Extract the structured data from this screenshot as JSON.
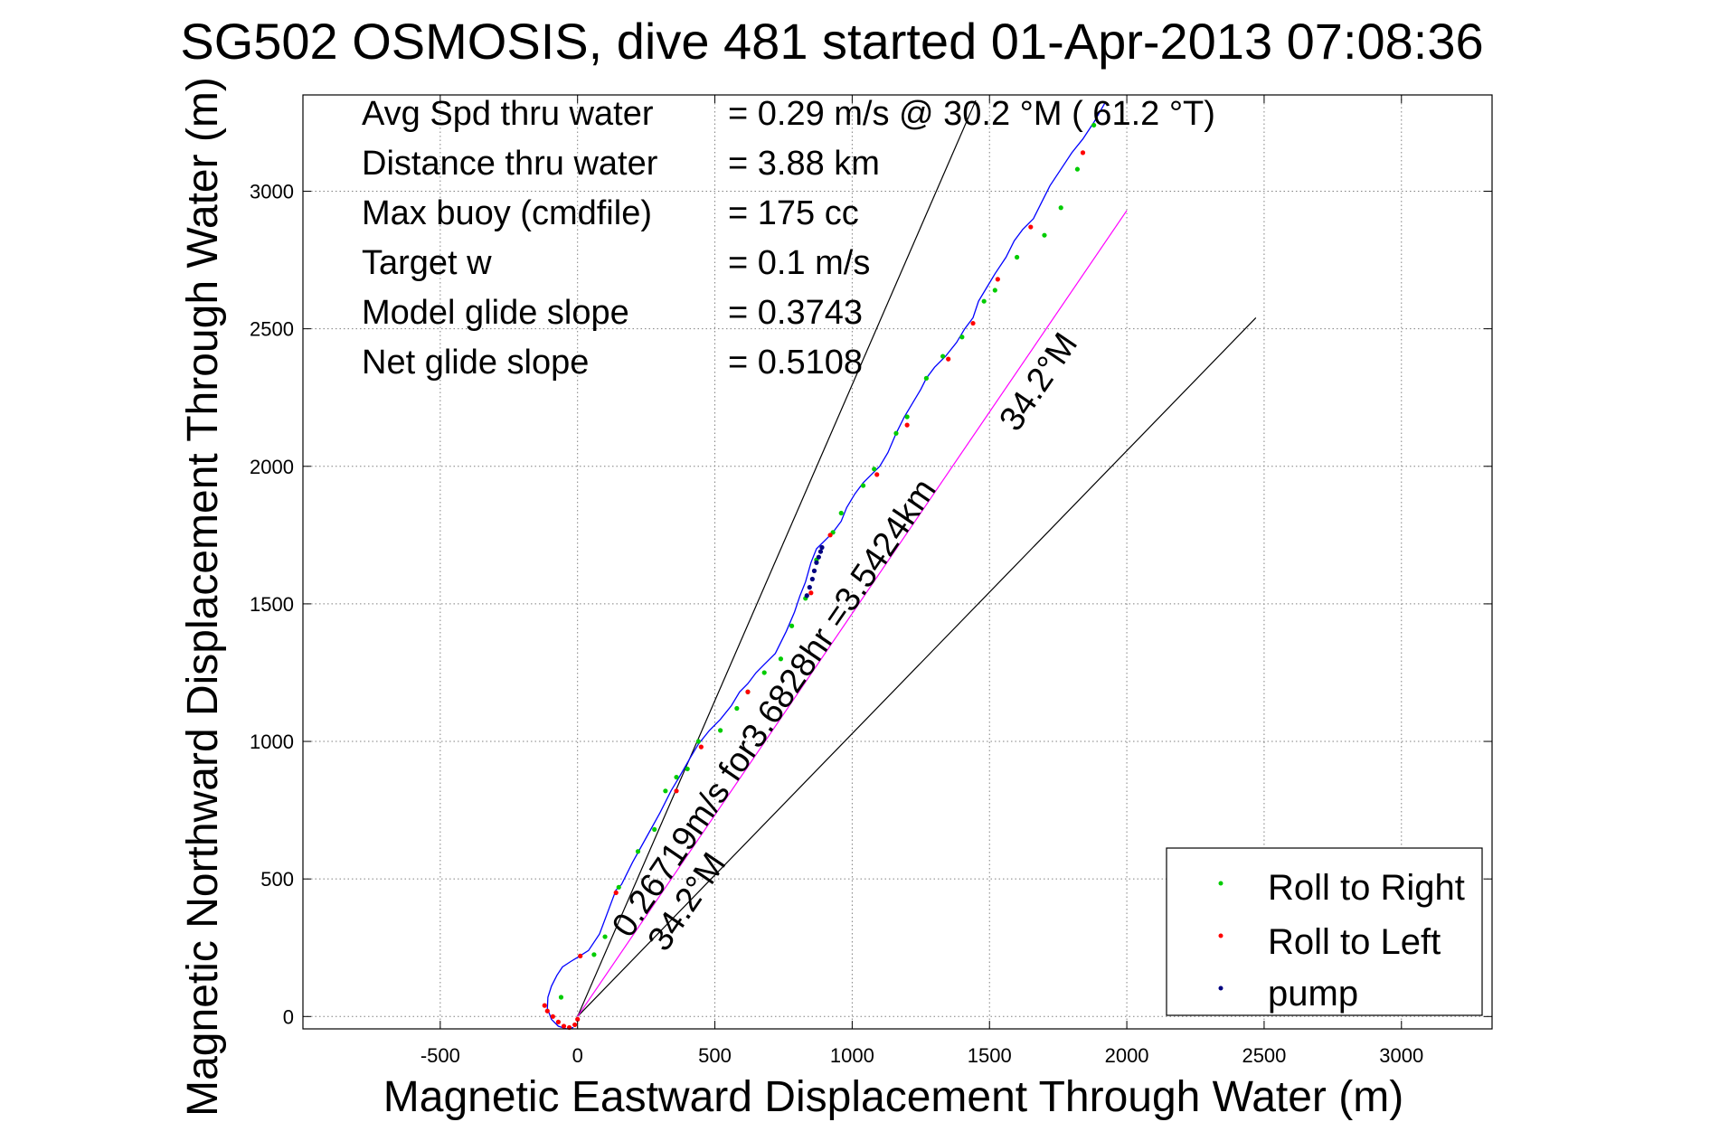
{
  "chart_data": {
    "type": "line",
    "title": "SG502 OSMOSIS, dive 481 started 01-Apr-2013 07:08:36",
    "xlabel": "Magnetic Eastward Displacement Through Water (m)",
    "ylabel": "Magnetic Northward Displacement Through Water (m)",
    "xlim": [
      -1000,
      3330
    ],
    "ylim": [
      -45,
      3350
    ],
    "xticks": [
      -500,
      0,
      500,
      1000,
      1500,
      2000,
      2500,
      3000
    ],
    "yticks": [
      0,
      500,
      1000,
      1500,
      2000,
      2500,
      3000
    ],
    "xtick_labels": [
      "-500",
      "0",
      "500",
      "1000",
      "1500",
      "2000",
      "2500",
      "3000"
    ],
    "ytick_labels": [
      "0",
      "500",
      "1000",
      "1500",
      "2000",
      "2500",
      "3000"
    ],
    "grid": true,
    "legend_position": "bottom-right",
    "stats": [
      {
        "label": "Avg Spd thru water",
        "value": "=  0.29 m/s @  30.2 °M ( 61.2 °T)"
      },
      {
        "label": "Distance thru water",
        "value": "=  3.88 km"
      },
      {
        "label": "Max buoy (cmdfile)",
        "value": "= 175 cc"
      },
      {
        "label": "Target w",
        "value": "= 0.1 m/s"
      },
      {
        "label": "Model glide slope",
        "value": "= 0.3743"
      },
      {
        "label": "Net glide slope",
        "value": "= 0.5108"
      }
    ],
    "track": {
      "color": "#0000ff",
      "x": [
        -15,
        -40,
        -70,
        -95,
        -110,
        -108,
        -95,
        -75,
        -55,
        -25,
        0,
        40,
        80,
        110,
        140,
        160,
        200,
        250,
        300,
        340,
        370,
        410,
        440,
        480,
        520,
        560,
        590,
        620,
        650,
        680,
        720,
        760,
        790,
        810,
        830,
        850,
        870,
        890,
        910,
        930,
        960,
        980,
        1010,
        1040,
        1070,
        1100,
        1130,
        1160,
        1190,
        1220,
        1250,
        1270,
        1300,
        1340,
        1380,
        1410,
        1440,
        1460,
        1490,
        1520,
        1560,
        1590,
        1620,
        1660,
        1690,
        1720,
        1760,
        1800,
        1840,
        1880,
        1920
      ],
      "y": [
        -40,
        -45,
        -35,
        -10,
        30,
        70,
        110,
        150,
        180,
        200,
        215,
        240,
        300,
        380,
        460,
        480,
        560,
        650,
        740,
        820,
        870,
        940,
        990,
        1040,
        1080,
        1130,
        1180,
        1210,
        1250,
        1280,
        1320,
        1400,
        1470,
        1530,
        1580,
        1650,
        1700,
        1720,
        1740,
        1760,
        1800,
        1850,
        1900,
        1940,
        1970,
        2000,
        2050,
        2120,
        2180,
        2230,
        2280,
        2320,
        2360,
        2400,
        2450,
        2500,
        2540,
        2600,
        2650,
        2700,
        2760,
        2820,
        2860,
        2900,
        2960,
        3020,
        3080,
        3140,
        3190,
        3250,
        3320
      ]
    },
    "slant_lines": [
      {
        "from": [
          0,
          0
        ],
        "to": [
          1450,
          3330
        ],
        "color": "#000000"
      },
      {
        "from": [
          0,
          0
        ],
        "to": [
          2470,
          2540
        ],
        "color": "#000000"
      },
      {
        "from": [
          0,
          0
        ],
        "to": [
          2000,
          2930
        ],
        "color": "#ff00ff"
      }
    ],
    "series": [
      {
        "name": "Roll to Right",
        "color": "#00cc00",
        "x": [
          -60,
          60,
          100,
          150,
          220,
          280,
          320,
          360,
          400,
          440,
          520,
          580,
          620,
          680,
          740,
          780,
          830,
          870,
          930,
          960,
          1040,
          1080,
          1160,
          1200,
          1270,
          1330,
          1400,
          1480,
          1520,
          1600,
          1700,
          1760,
          1820,
          1880
        ],
        "y": [
          70,
          225,
          290,
          470,
          600,
          680,
          820,
          870,
          900,
          1000,
          1040,
          1120,
          1180,
          1250,
          1300,
          1420,
          1520,
          1660,
          1760,
          1830,
          1930,
          1990,
          2120,
          2180,
          2320,
          2400,
          2470,
          2600,
          2640,
          2760,
          2840,
          2940,
          3080,
          3240
        ]
      },
      {
        "name": "Roll to Left",
        "color": "#ff0000",
        "x": [
          -120,
          -110,
          -90,
          -70,
          -50,
          -30,
          -10,
          0,
          10,
          140,
          360,
          450,
          620,
          850,
          920,
          1090,
          1200,
          1350,
          1440,
          1530,
          1650,
          1840
        ],
        "y": [
          40,
          20,
          0,
          -20,
          -35,
          -40,
          -30,
          -10,
          220,
          450,
          820,
          980,
          1180,
          1540,
          1750,
          1970,
          2150,
          2390,
          2520,
          2680,
          2870,
          3140
        ]
      },
      {
        "name": "pump",
        "color": "#000080",
        "x": [
          835,
          845,
          855,
          862,
          870,
          878,
          885,
          890
        ],
        "y": [
          1530,
          1560,
          1590,
          1620,
          1650,
          1670,
          1690,
          1705
        ]
      }
    ],
    "annotations": [
      {
        "text": "0.26719m/s for3.6828hr =3.5424km",
        "x": 190,
        "y": 280,
        "angle": 55.7
      },
      {
        "text": "34.2°M",
        "x": 320,
        "y": 230,
        "angle": 55.7
      },
      {
        "text": "34.2°M",
        "x": 1600,
        "y": 2120,
        "angle": 55.7
      }
    ]
  }
}
